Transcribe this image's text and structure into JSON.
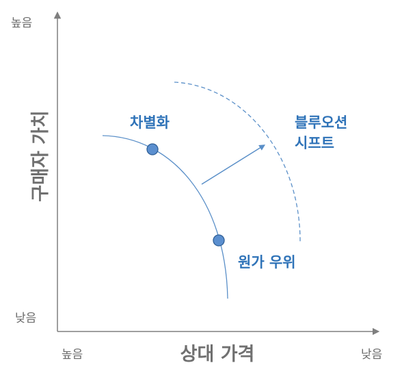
{
  "y_axis": {
    "title": "구매자 가치",
    "top_label": "높음",
    "bottom_label": "낮음"
  },
  "x_axis": {
    "title": "상대 가격",
    "left_label": "높음",
    "right_label": "낮음"
  },
  "labels": {
    "differentiation": "차별화",
    "cost_advantage": "원가 우위",
    "blue_ocean_line1": "블루오션",
    "blue_ocean_line2": "시프트"
  },
  "colors": {
    "axis": "#7f7f7f",
    "curve": "#5a8fc8",
    "marker_fill": "#5b8fcf",
    "marker_stroke": "#2f5f96",
    "label_blue": "#2f73b8",
    "text_gray": "#6b6b6b"
  }
}
